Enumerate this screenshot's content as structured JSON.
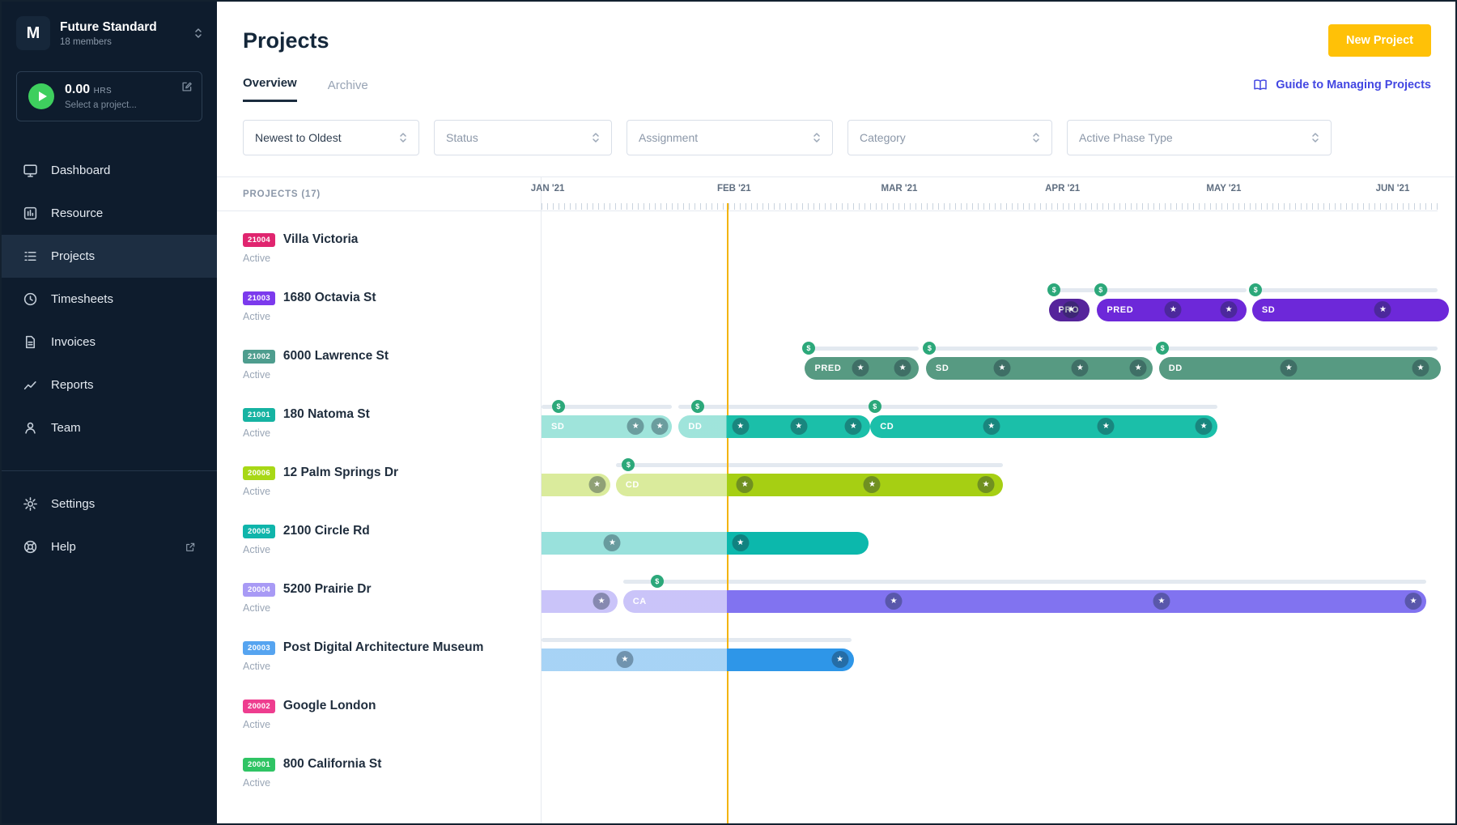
{
  "sidebar": {
    "org": {
      "logo": "M",
      "name": "Future Standard",
      "members": "18 members"
    },
    "timer": {
      "hours": "0.00",
      "unit": "HRS",
      "placeholder": "Select a project..."
    },
    "nav": [
      {
        "name": "dashboard",
        "label": "Dashboard",
        "icon": "monitor",
        "active": false
      },
      {
        "name": "resource",
        "label": "Resource",
        "icon": "grid",
        "active": false
      },
      {
        "name": "projects",
        "label": "Projects",
        "icon": "list",
        "active": true
      },
      {
        "name": "timesheets",
        "label": "Timesheets",
        "icon": "clock",
        "active": false
      },
      {
        "name": "invoices",
        "label": "Invoices",
        "icon": "invoice",
        "active": false
      },
      {
        "name": "reports",
        "label": "Reports",
        "icon": "chart",
        "active": false
      },
      {
        "name": "team",
        "label": "Team",
        "icon": "person",
        "active": false
      }
    ],
    "footer_nav": [
      {
        "name": "settings",
        "label": "Settings",
        "icon": "gear",
        "external": false
      },
      {
        "name": "help",
        "label": "Help",
        "icon": "lifebuoy",
        "external": true
      }
    ]
  },
  "header": {
    "title": "Projects",
    "new_project_label": "New Project"
  },
  "tabs": [
    {
      "label": "Overview",
      "active": true
    },
    {
      "label": "Archive",
      "active": false
    }
  ],
  "guide_link": "Guide to Managing Projects",
  "filters": [
    {
      "name": "sort",
      "label": "Newest to Oldest",
      "selected": true
    },
    {
      "name": "status",
      "label": "Status",
      "selected": false
    },
    {
      "name": "assignment",
      "label": "Assignment",
      "selected": false
    },
    {
      "name": "category",
      "label": "Category",
      "selected": false
    },
    {
      "name": "phase-type",
      "label": "Active Phase Type",
      "selected": false
    }
  ],
  "gantt": {
    "panel_title": "PROJECTS (17)",
    "today_pct": 20.7,
    "months": [
      {
        "label": "JAN '21",
        "pct": -1.2
      },
      {
        "label": "FEB '21",
        "pct": 19.6
      },
      {
        "label": "MAR '21",
        "pct": 37.9
      },
      {
        "label": "APR '21",
        "pct": 56.2
      },
      {
        "label": "MAY '21",
        "pct": 74.2
      },
      {
        "label": "JUN '21",
        "pct": 93.1
      }
    ],
    "projects": [
      {
        "id": "21004",
        "name": "Villa Victoria",
        "status": "Active",
        "badge_color": "#e0256f",
        "phases": []
      },
      {
        "id": "21003",
        "name": "1680 Octavia St",
        "status": "Active",
        "badge_color": "#7c3aed",
        "phases": [
          {
            "label": "PRO",
            "color": "#55249b",
            "start": 56.6,
            "width": 4.6,
            "fade_to": 0,
            "round_left": true,
            "round_right": true,
            "stars": [
              59.1
            ],
            "dollars": [
              57.2
            ],
            "track": {
              "start": 56.6,
              "width": 5.2
            }
          },
          {
            "label": "PRED",
            "color": "#6d28d9",
            "start": 62.0,
            "width": 16.7,
            "fade_to": 0,
            "round_left": true,
            "round_right": true,
            "stars": [
              70.5,
              76.7
            ],
            "dollars": [
              62.4
            ],
            "track": {
              "start": 62.0,
              "width": 16.7
            }
          },
          {
            "label": "SD",
            "color": "#6d28d9",
            "start": 79.3,
            "width": 22.0,
            "fade_to": 0,
            "round_left": true,
            "round_right": true,
            "stars": [
              93.9
            ],
            "dollars": [
              79.7
            ],
            "track": {
              "start": 79.3,
              "width": 20.7
            }
          }
        ]
      },
      {
        "id": "21002",
        "name": "6000 Lawrence St",
        "status": "Active",
        "badge_color": "#4e9d8e",
        "phases": [
          {
            "label": "PRED",
            "color": "#579a82",
            "start": 29.4,
            "width": 12.7,
            "fade_to": 0,
            "round_left": true,
            "round_right": true,
            "stars": [
              35.6,
              40.3
            ],
            "dollars": [
              29.8
            ],
            "track": {
              "start": 29.4,
              "width": 12.7
            }
          },
          {
            "label": "SD",
            "color": "#579a82",
            "start": 42.9,
            "width": 25.3,
            "fade_to": 0,
            "round_left": true,
            "round_right": true,
            "stars": [
              51.4,
              60.1,
              66.6
            ],
            "dollars": [
              43.3
            ],
            "track": {
              "start": 42.9,
              "width": 25.3
            }
          },
          {
            "label": "DD",
            "color": "#579a82",
            "start": 68.9,
            "width": 31.5,
            "fade_to": 0,
            "round_left": true,
            "round_right": true,
            "stars": [
              83.4,
              98.1
            ],
            "dollars": [
              69.3
            ],
            "track": {
              "start": 68.9,
              "width": 31.1
            }
          }
        ]
      },
      {
        "id": "21001",
        "name": "180 Natoma St",
        "status": "Active",
        "badge_color": "#16b3a2",
        "phases": [
          {
            "label": "SD",
            "color": "#1bbfa9",
            "start": 0,
            "width": 14.5,
            "fade_to": 100,
            "round_left": false,
            "round_right": true,
            "stars": [
              10.5,
              13.2
            ],
            "dollars": [
              1.9
            ],
            "track": {
              "start": 0,
              "width": 14.5
            }
          },
          {
            "label": "DD",
            "color": "#1bbfa9",
            "start": 15.3,
            "width": 21.4,
            "fade_to": 20.7,
            "round_left": true,
            "round_right": true,
            "stars": [
              22.2,
              28.7,
              34.8
            ],
            "dollars": [
              17.4
            ],
            "track": {
              "start": 15.3,
              "width": 60.1
            }
          },
          {
            "label": "CD",
            "color": "#1bbfa9",
            "start": 36.7,
            "width": 38.7,
            "fade_to": 0,
            "round_left": true,
            "round_right": true,
            "stars": [
              50.2,
              63.0,
              73.9
            ],
            "dollars": [
              37.2
            ],
            "track": null
          }
        ]
      },
      {
        "id": "20006",
        "name": "12 Palm Springs Dr",
        "status": "Active",
        "badge_color": "#a8d816",
        "phases": [
          {
            "label": "",
            "color": "#a6cf13",
            "start": 0,
            "width": 7.7,
            "fade_to": 100,
            "round_left": false,
            "round_right": true,
            "stars": [
              6.2
            ],
            "dollars": [],
            "track": null
          },
          {
            "label": "CD",
            "color": "#a6cf13",
            "start": 8.3,
            "width": 43.2,
            "fade_to": 20.7,
            "round_left": true,
            "round_right": true,
            "stars": [
              22.7,
              36.9,
              49.6
            ],
            "dollars": [
              9.7
            ],
            "track": {
              "start": 8.3,
              "width": 43.2
            }
          }
        ]
      },
      {
        "id": "20005",
        "name": "2100 Circle Rd",
        "status": "Active",
        "badge_color": "#0fb5ab",
        "phases": [
          {
            "label": "",
            "color": "#0cb8ac",
            "start": 0,
            "width": 36.5,
            "fade_to": 20.7,
            "round_left": false,
            "round_right": true,
            "stars": [
              7.9,
              22.2
            ],
            "dollars": [],
            "track": null
          }
        ]
      },
      {
        "id": "20004",
        "name": "5200 Prairie Dr",
        "status": "Active",
        "badge_color": "#a89af5",
        "phases": [
          {
            "label": "",
            "color": "#8173f0",
            "start": 0,
            "width": 8.5,
            "fade_to": 100,
            "round_left": false,
            "round_right": true,
            "stars": [
              6.7
            ],
            "dollars": [],
            "track": null
          },
          {
            "label": "CA",
            "color": "#8173f0",
            "start": 9.1,
            "width": 89.6,
            "fade_to": 20.7,
            "round_left": true,
            "round_right": true,
            "stars": [
              39.3,
              69.2,
              97.3
            ],
            "dollars": [
              12.9
            ],
            "track": {
              "start": 9.1,
              "width": 89.6
            }
          }
        ]
      },
      {
        "id": "20003",
        "name": "Post Digital Architecture Museum",
        "status": "Active",
        "badge_color": "#56a4f0",
        "phases": [
          {
            "label": "",
            "color": "#2e96e8",
            "start": 0,
            "width": 34.9,
            "fade_to": 20.7,
            "round_left": false,
            "round_right": true,
            "stars": [
              9.3,
              33.3
            ],
            "dollars": [],
            "track": {
              "start": 0,
              "width": 34.6
            }
          }
        ]
      },
      {
        "id": "20002",
        "name": "Google London",
        "status": "Active",
        "badge_color": "#ee3d8f",
        "phases": []
      },
      {
        "id": "20001",
        "name": "800 California St",
        "status": "Active",
        "badge_color": "#2fc464",
        "phases": []
      }
    ]
  }
}
